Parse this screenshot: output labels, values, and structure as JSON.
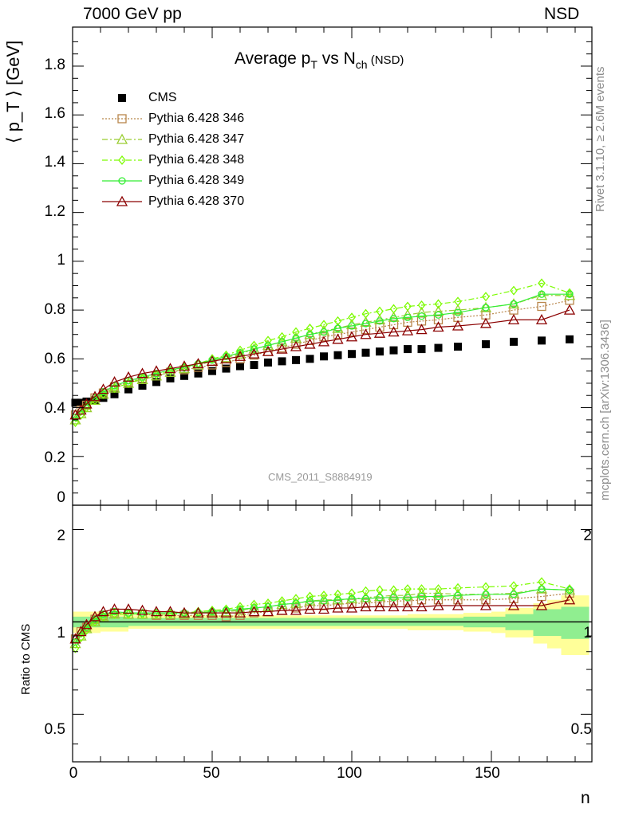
{
  "header": {
    "collision": "7000 GeV pp",
    "process": "NSD"
  },
  "side_labels": {
    "rivet": "Rivet 3.1.10, ≥ 2.6M events",
    "mcplots": "mcplots.cern.ch [arXiv:1306.3436]"
  },
  "analysis_tag": "CMS_2011_S8884919",
  "title": {
    "main": "Average p",
    "sub1": "T",
    "mid": " vs N",
    "sub2": "ch",
    "tail": " (NSD)"
  },
  "axis_titles": {
    "y_main": "⟨ p_T ⟩ [GeV]",
    "y_ratio": "Ratio to CMS",
    "x": "n"
  },
  "legend": [
    {
      "label": "CMS",
      "color": "#000000",
      "marker": "filled-square",
      "style": "none"
    },
    {
      "label": "Pythia 6.428 346",
      "color": "#b8864b",
      "marker": "open-square",
      "style": "dotted"
    },
    {
      "label": "Pythia 6.428 347",
      "color": "#9acd32",
      "marker": "open-triangle",
      "style": "dashdot"
    },
    {
      "label": "Pythia 6.428 348",
      "color": "#7cfc00",
      "marker": "open-diamond",
      "style": "dashdot"
    },
    {
      "label": "Pythia 6.428 349",
      "color": "#33ee33",
      "marker": "open-circle-cross",
      "style": "solid"
    },
    {
      "label": "Pythia 6.428 370",
      "color": "#8b0000",
      "marker": "open-triangle",
      "style": "solid"
    }
  ],
  "ticks": {
    "main_y": [
      "0",
      "0.2",
      "0.4",
      "0.6",
      "0.8",
      "1",
      "1.2",
      "1.4",
      "1.6",
      "1.8"
    ],
    "ratio_y": [
      "0.5",
      "1",
      "2"
    ],
    "x": [
      "0",
      "50",
      "100",
      "150"
    ]
  },
  "chart_data": {
    "type": "scatter",
    "x_label": "n",
    "xlim": [
      0,
      186
    ],
    "main": {
      "ylabel": "⟨ p_T ⟩ [GeV]",
      "ylim": [
        0,
        1.96
      ],
      "series": [
        {
          "name": "CMS",
          "x": [
            1,
            3,
            5,
            8,
            11,
            15,
            20,
            25,
            30,
            35,
            40,
            45,
            50,
            55,
            60,
            65,
            70,
            75,
            80,
            85,
            90,
            95,
            100,
            105,
            110,
            115,
            120,
            125,
            131,
            138,
            148,
            158,
            168,
            178
          ],
          "y": [
            0.42,
            0.42,
            0.425,
            0.43,
            0.44,
            0.455,
            0.475,
            0.49,
            0.505,
            0.52,
            0.53,
            0.54,
            0.55,
            0.56,
            0.57,
            0.575,
            0.585,
            0.59,
            0.595,
            0.6,
            0.61,
            0.615,
            0.62,
            0.625,
            0.63,
            0.635,
            0.64,
            0.64,
            0.645,
            0.65,
            0.66,
            0.67,
            0.675,
            0.68
          ]
        },
        {
          "name": "Pythia 6.428 346",
          "x": [
            1,
            3,
            5,
            8,
            11,
            15,
            20,
            25,
            30,
            35,
            40,
            45,
            50,
            55,
            60,
            65,
            70,
            75,
            80,
            85,
            90,
            95,
            100,
            105,
            110,
            115,
            120,
            125,
            131,
            138,
            148,
            158,
            168,
            178
          ],
          "y": [
            0.37,
            0.39,
            0.41,
            0.44,
            0.46,
            0.485,
            0.505,
            0.52,
            0.53,
            0.545,
            0.555,
            0.565,
            0.575,
            0.585,
            0.6,
            0.615,
            0.63,
            0.645,
            0.66,
            0.675,
            0.69,
            0.7,
            0.71,
            0.72,
            0.73,
            0.74,
            0.75,
            0.755,
            0.76,
            0.77,
            0.78,
            0.8,
            0.815,
            0.84
          ]
        },
        {
          "name": "Pythia 6.428 347",
          "x": [
            1,
            3,
            5,
            8,
            11,
            15,
            20,
            25,
            30,
            35,
            40,
            45,
            50,
            55,
            60,
            65,
            70,
            75,
            80,
            85,
            90,
            95,
            100,
            105,
            110,
            115,
            120,
            125,
            131,
            138,
            148,
            158,
            168,
            178
          ],
          "y": [
            0.35,
            0.375,
            0.4,
            0.43,
            0.455,
            0.48,
            0.5,
            0.515,
            0.53,
            0.545,
            0.56,
            0.575,
            0.59,
            0.605,
            0.62,
            0.64,
            0.655,
            0.67,
            0.685,
            0.7,
            0.715,
            0.725,
            0.74,
            0.75,
            0.76,
            0.77,
            0.78,
            0.79,
            0.795,
            0.8,
            0.81,
            0.825,
            0.86,
            0.86
          ]
        },
        {
          "name": "Pythia 6.428 348",
          "x": [
            1,
            3,
            5,
            8,
            11,
            15,
            20,
            25,
            30,
            35,
            40,
            45,
            50,
            55,
            60,
            65,
            70,
            75,
            80,
            85,
            90,
            95,
            100,
            105,
            110,
            115,
            120,
            125,
            131,
            138,
            148,
            158,
            168,
            178
          ],
          "y": [
            0.34,
            0.37,
            0.4,
            0.43,
            0.455,
            0.48,
            0.5,
            0.52,
            0.535,
            0.55,
            0.565,
            0.58,
            0.6,
            0.615,
            0.635,
            0.655,
            0.675,
            0.69,
            0.71,
            0.725,
            0.74,
            0.755,
            0.77,
            0.785,
            0.795,
            0.805,
            0.815,
            0.82,
            0.825,
            0.835,
            0.855,
            0.88,
            0.91,
            0.87
          ]
        },
        {
          "name": "Pythia 6.428 349",
          "x": [
            1,
            3,
            5,
            8,
            11,
            15,
            20,
            25,
            30,
            35,
            40,
            45,
            50,
            55,
            60,
            65,
            70,
            75,
            80,
            85,
            90,
            95,
            100,
            105,
            110,
            115,
            120,
            125,
            131,
            138,
            148,
            158,
            168,
            178
          ],
          "y": [
            0.36,
            0.385,
            0.41,
            0.44,
            0.465,
            0.49,
            0.51,
            0.525,
            0.54,
            0.555,
            0.565,
            0.58,
            0.595,
            0.61,
            0.625,
            0.64,
            0.655,
            0.67,
            0.685,
            0.7,
            0.71,
            0.725,
            0.735,
            0.745,
            0.755,
            0.765,
            0.77,
            0.775,
            0.78,
            0.79,
            0.81,
            0.825,
            0.865,
            0.865
          ]
        },
        {
          "name": "Pythia 6.428 370",
          "x": [
            1,
            3,
            5,
            8,
            11,
            15,
            20,
            25,
            30,
            35,
            40,
            45,
            50,
            55,
            60,
            65,
            70,
            75,
            80,
            85,
            90,
            95,
            100,
            105,
            110,
            115,
            120,
            125,
            131,
            138,
            148,
            158,
            168,
            178
          ],
          "y": [
            0.37,
            0.39,
            0.415,
            0.445,
            0.475,
            0.505,
            0.525,
            0.54,
            0.55,
            0.56,
            0.57,
            0.58,
            0.59,
            0.6,
            0.61,
            0.62,
            0.63,
            0.64,
            0.65,
            0.66,
            0.67,
            0.68,
            0.69,
            0.7,
            0.705,
            0.71,
            0.715,
            0.72,
            0.73,
            0.735,
            0.745,
            0.76,
            0.76,
            0.8
          ]
        }
      ]
    },
    "ratio": {
      "ylabel": "Ratio to CMS",
      "scale": "log",
      "ylim": [
        0.35,
        2.4
      ],
      "band_x_edges": [
        0,
        10,
        20,
        40,
        60,
        80,
        100,
        120,
        140,
        150,
        155,
        165,
        170,
        175,
        185
      ],
      "band_stat": [
        0.04,
        0.04,
        0.03,
        0.03,
        0.03,
        0.03,
        0.03,
        0.03,
        0.04,
        0.04,
        0.06,
        0.1,
        0.1,
        0.12
      ],
      "band_total": [
        0.08,
        0.07,
        0.05,
        0.05,
        0.05,
        0.05,
        0.05,
        0.06,
        0.07,
        0.08,
        0.11,
        0.15,
        0.18,
        0.22
      ],
      "series": [
        {
          "name": "Pythia 6.428 346",
          "x": [
            1,
            3,
            5,
            8,
            11,
            15,
            20,
            25,
            30,
            35,
            40,
            45,
            50,
            55,
            60,
            65,
            70,
            75,
            80,
            85,
            90,
            95,
            100,
            105,
            110,
            115,
            120,
            125,
            131,
            138,
            148,
            158,
            168,
            178
          ],
          "y": [
            0.88,
            0.93,
            0.96,
            1.02,
            1.05,
            1.07,
            1.06,
            1.06,
            1.05,
            1.05,
            1.05,
            1.05,
            1.05,
            1.04,
            1.05,
            1.07,
            1.08,
            1.09,
            1.11,
            1.13,
            1.13,
            1.14,
            1.15,
            1.15,
            1.16,
            1.17,
            1.17,
            1.18,
            1.18,
            1.18,
            1.18,
            1.19,
            1.21,
            1.24
          ]
        },
        {
          "name": "Pythia 6.428 347",
          "x": [
            1,
            3,
            5,
            8,
            11,
            15,
            20,
            25,
            30,
            35,
            40,
            45,
            50,
            55,
            60,
            65,
            70,
            75,
            80,
            85,
            90,
            95,
            100,
            105,
            110,
            115,
            120,
            125,
            131,
            138,
            148,
            158,
            168,
            178
          ],
          "y": [
            0.85,
            0.9,
            0.95,
            1.0,
            1.04,
            1.06,
            1.06,
            1.06,
            1.06,
            1.06,
            1.06,
            1.07,
            1.08,
            1.08,
            1.09,
            1.11,
            1.12,
            1.14,
            1.15,
            1.17,
            1.18,
            1.18,
            1.19,
            1.2,
            1.21,
            1.22,
            1.22,
            1.24,
            1.24,
            1.23,
            1.23,
            1.24,
            1.28,
            1.27
          ]
        },
        {
          "name": "Pythia 6.428 348",
          "x": [
            1,
            3,
            5,
            8,
            11,
            15,
            20,
            25,
            30,
            35,
            40,
            45,
            50,
            55,
            60,
            65,
            70,
            75,
            80,
            85,
            90,
            95,
            100,
            105,
            110,
            115,
            120,
            125,
            131,
            138,
            148,
            158,
            168,
            178
          ],
          "y": [
            0.82,
            0.89,
            0.94,
            1.0,
            1.04,
            1.06,
            1.06,
            1.06,
            1.06,
            1.06,
            1.07,
            1.08,
            1.09,
            1.1,
            1.12,
            1.14,
            1.15,
            1.17,
            1.19,
            1.21,
            1.22,
            1.23,
            1.24,
            1.26,
            1.27,
            1.27,
            1.28,
            1.28,
            1.28,
            1.29,
            1.3,
            1.31,
            1.35,
            1.28
          ]
        },
        {
          "name": "Pythia 6.428 349",
          "x": [
            1,
            3,
            5,
            8,
            11,
            15,
            20,
            25,
            30,
            35,
            40,
            45,
            50,
            55,
            60,
            65,
            70,
            75,
            80,
            85,
            90,
            95,
            100,
            105,
            110,
            115,
            120,
            125,
            131,
            138,
            148,
            158,
            168,
            178
          ],
          "y": [
            0.86,
            0.92,
            0.96,
            1.02,
            1.06,
            1.08,
            1.07,
            1.07,
            1.07,
            1.07,
            1.07,
            1.07,
            1.08,
            1.09,
            1.1,
            1.11,
            1.12,
            1.14,
            1.15,
            1.17,
            1.17,
            1.18,
            1.19,
            1.19,
            1.2,
            1.2,
            1.2,
            1.21,
            1.21,
            1.22,
            1.23,
            1.23,
            1.28,
            1.27
          ]
        },
        {
          "name": "Pythia 6.428 370",
          "x": [
            1,
            3,
            5,
            8,
            11,
            15,
            20,
            25,
            30,
            35,
            40,
            45,
            50,
            55,
            60,
            65,
            70,
            75,
            80,
            85,
            90,
            95,
            100,
            105,
            110,
            115,
            120,
            125,
            131,
            138,
            148,
            158,
            168,
            178
          ],
          "y": [
            0.88,
            0.93,
            0.98,
            1.04,
            1.08,
            1.1,
            1.1,
            1.09,
            1.08,
            1.08,
            1.07,
            1.07,
            1.07,
            1.07,
            1.07,
            1.08,
            1.08,
            1.09,
            1.09,
            1.1,
            1.1,
            1.11,
            1.11,
            1.12,
            1.12,
            1.12,
            1.12,
            1.12,
            1.13,
            1.13,
            1.13,
            1.13,
            1.13,
            1.18
          ]
        }
      ]
    }
  }
}
